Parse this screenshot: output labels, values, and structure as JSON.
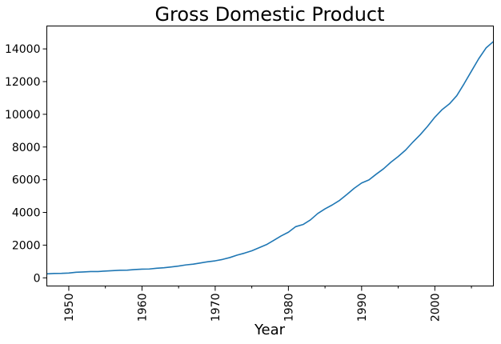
{
  "chart_data": {
    "type": "line",
    "title": "Gross Domestic Product",
    "xlabel": "Year",
    "ylabel": "",
    "xlim": [
      1947,
      2008
    ],
    "ylim": [
      -500,
      15400
    ],
    "grid": false,
    "legend": "none",
    "x_ticks": [
      1950,
      1960,
      1970,
      1980,
      1990,
      2000
    ],
    "x_tick_labels": [
      "1950",
      "1960",
      "1970",
      "1980",
      "1990",
      "2000"
    ],
    "y_ticks": [
      0,
      2000,
      4000,
      6000,
      8000,
      10000,
      12000,
      14000
    ],
    "y_tick_labels": [
      "0",
      "2000",
      "4000",
      "6000",
      "8000",
      "10000",
      "12000",
      "14000"
    ],
    "series": [
      {
        "color": "#1f77b4",
        "x": [
          1947,
          1948,
          1949,
          1950,
          1951,
          1952,
          1953,
          1954,
          1955,
          1956,
          1957,
          1958,
          1959,
          1960,
          1961,
          1962,
          1963,
          1964,
          1965,
          1966,
          1967,
          1968,
          1969,
          1970,
          1971,
          1972,
          1973,
          1974,
          1975,
          1976,
          1977,
          1978,
          1979,
          1980,
          1981,
          1982,
          1983,
          1984,
          1985,
          1986,
          1987,
          1988,
          1989,
          1990,
          1991,
          1992,
          1993,
          1994,
          1995,
          1996,
          1997,
          1998,
          1999,
          2000,
          2001,
          2002,
          2003,
          2004,
          2005,
          2006,
          2007,
          2008
        ],
        "values": [
          244,
          269,
          275,
          294,
          340,
          360,
          385,
          385,
          415,
          440,
          465,
          470,
          505,
          530,
          540,
          585,
          615,
          665,
          720,
          790,
          835,
          910,
          985,
          1040,
          1125,
          1240,
          1390,
          1510,
          1655,
          1840,
          2030,
          2290,
          2560,
          2790,
          3130,
          3260,
          3540,
          3930,
          4220,
          4460,
          4740,
          5100,
          5480,
          5800,
          5990,
          6340,
          6670,
          7070,
          7420,
          7810,
          8300,
          8750,
          9260,
          9820,
          10290,
          10640,
          11140,
          11870,
          12640,
          13400,
          14060,
          14450
        ]
      }
    ]
  }
}
